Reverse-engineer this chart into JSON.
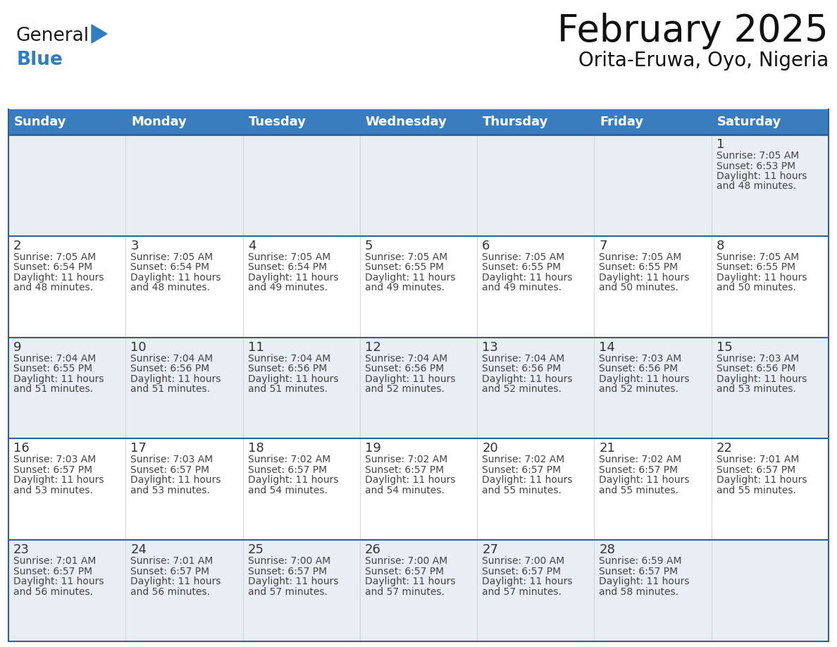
{
  "title": "February 2025",
  "subtitle": "Orita-Eruwa, Oyo, Nigeria",
  "header_bg": "#3a7dbf",
  "header_text_color": "#ffffff",
  "row0_bg": "#e8eef4",
  "row_odd_bg": "#ffffff",
  "row_even_bg": "#f0f4f8",
  "border_color": "#2e5f9e",
  "day_headers": [
    "Sunday",
    "Monday",
    "Tuesday",
    "Wednesday",
    "Thursday",
    "Friday",
    "Saturday"
  ],
  "title_fontsize": 38,
  "subtitle_fontsize": 20,
  "header_fontsize": 13,
  "cell_day_fontsize": 13,
  "cell_info_fontsize": 10,
  "logo_general_color": "#1a1a1a",
  "logo_blue_color": "#2e7fc1",
  "logo_triangle_color": "#2e7fc1",
  "calendar_data": [
    [
      null,
      null,
      null,
      null,
      null,
      null,
      {
        "day": 1,
        "sunrise": "7:05 AM",
        "sunset": "6:53 PM",
        "daylight": "11 hours",
        "daylight2": "and 48 minutes."
      }
    ],
    [
      {
        "day": 2,
        "sunrise": "7:05 AM",
        "sunset": "6:54 PM",
        "daylight": "11 hours",
        "daylight2": "and 48 minutes."
      },
      {
        "day": 3,
        "sunrise": "7:05 AM",
        "sunset": "6:54 PM",
        "daylight": "11 hours",
        "daylight2": "and 48 minutes."
      },
      {
        "day": 4,
        "sunrise": "7:05 AM",
        "sunset": "6:54 PM",
        "daylight": "11 hours",
        "daylight2": "and 49 minutes."
      },
      {
        "day": 5,
        "sunrise": "7:05 AM",
        "sunset": "6:55 PM",
        "daylight": "11 hours",
        "daylight2": "and 49 minutes."
      },
      {
        "day": 6,
        "sunrise": "7:05 AM",
        "sunset": "6:55 PM",
        "daylight": "11 hours",
        "daylight2": "and 49 minutes."
      },
      {
        "day": 7,
        "sunrise": "7:05 AM",
        "sunset": "6:55 PM",
        "daylight": "11 hours",
        "daylight2": "and 50 minutes."
      },
      {
        "day": 8,
        "sunrise": "7:05 AM",
        "sunset": "6:55 PM",
        "daylight": "11 hours",
        "daylight2": "and 50 minutes."
      }
    ],
    [
      {
        "day": 9,
        "sunrise": "7:04 AM",
        "sunset": "6:55 PM",
        "daylight": "11 hours",
        "daylight2": "and 51 minutes."
      },
      {
        "day": 10,
        "sunrise": "7:04 AM",
        "sunset": "6:56 PM",
        "daylight": "11 hours",
        "daylight2": "and 51 minutes."
      },
      {
        "day": 11,
        "sunrise": "7:04 AM",
        "sunset": "6:56 PM",
        "daylight": "11 hours",
        "daylight2": "and 51 minutes."
      },
      {
        "day": 12,
        "sunrise": "7:04 AM",
        "sunset": "6:56 PM",
        "daylight": "11 hours",
        "daylight2": "and 52 minutes."
      },
      {
        "day": 13,
        "sunrise": "7:04 AM",
        "sunset": "6:56 PM",
        "daylight": "11 hours",
        "daylight2": "and 52 minutes."
      },
      {
        "day": 14,
        "sunrise": "7:03 AM",
        "sunset": "6:56 PM",
        "daylight": "11 hours",
        "daylight2": "and 52 minutes."
      },
      {
        "day": 15,
        "sunrise": "7:03 AM",
        "sunset": "6:56 PM",
        "daylight": "11 hours",
        "daylight2": "and 53 minutes."
      }
    ],
    [
      {
        "day": 16,
        "sunrise": "7:03 AM",
        "sunset": "6:57 PM",
        "daylight": "11 hours",
        "daylight2": "and 53 minutes."
      },
      {
        "day": 17,
        "sunrise": "7:03 AM",
        "sunset": "6:57 PM",
        "daylight": "11 hours",
        "daylight2": "and 53 minutes."
      },
      {
        "day": 18,
        "sunrise": "7:02 AM",
        "sunset": "6:57 PM",
        "daylight": "11 hours",
        "daylight2": "and 54 minutes."
      },
      {
        "day": 19,
        "sunrise": "7:02 AM",
        "sunset": "6:57 PM",
        "daylight": "11 hours",
        "daylight2": "and 54 minutes."
      },
      {
        "day": 20,
        "sunrise": "7:02 AM",
        "sunset": "6:57 PM",
        "daylight": "11 hours",
        "daylight2": "and 55 minutes."
      },
      {
        "day": 21,
        "sunrise": "7:02 AM",
        "sunset": "6:57 PM",
        "daylight": "11 hours",
        "daylight2": "and 55 minutes."
      },
      {
        "day": 22,
        "sunrise": "7:01 AM",
        "sunset": "6:57 PM",
        "daylight": "11 hours",
        "daylight2": "and 55 minutes."
      }
    ],
    [
      {
        "day": 23,
        "sunrise": "7:01 AM",
        "sunset": "6:57 PM",
        "daylight": "11 hours",
        "daylight2": "and 56 minutes."
      },
      {
        "day": 24,
        "sunrise": "7:01 AM",
        "sunset": "6:57 PM",
        "daylight": "11 hours",
        "daylight2": "and 56 minutes."
      },
      {
        "day": 25,
        "sunrise": "7:00 AM",
        "sunset": "6:57 PM",
        "daylight": "11 hours",
        "daylight2": "and 57 minutes."
      },
      {
        "day": 26,
        "sunrise": "7:00 AM",
        "sunset": "6:57 PM",
        "daylight": "11 hours",
        "daylight2": "and 57 minutes."
      },
      {
        "day": 27,
        "sunrise": "7:00 AM",
        "sunset": "6:57 PM",
        "daylight": "11 hours",
        "daylight2": "and 57 minutes."
      },
      {
        "day": 28,
        "sunrise": "6:59 AM",
        "sunset": "6:57 PM",
        "daylight": "11 hours",
        "daylight2": "and 58 minutes."
      },
      null
    ]
  ]
}
